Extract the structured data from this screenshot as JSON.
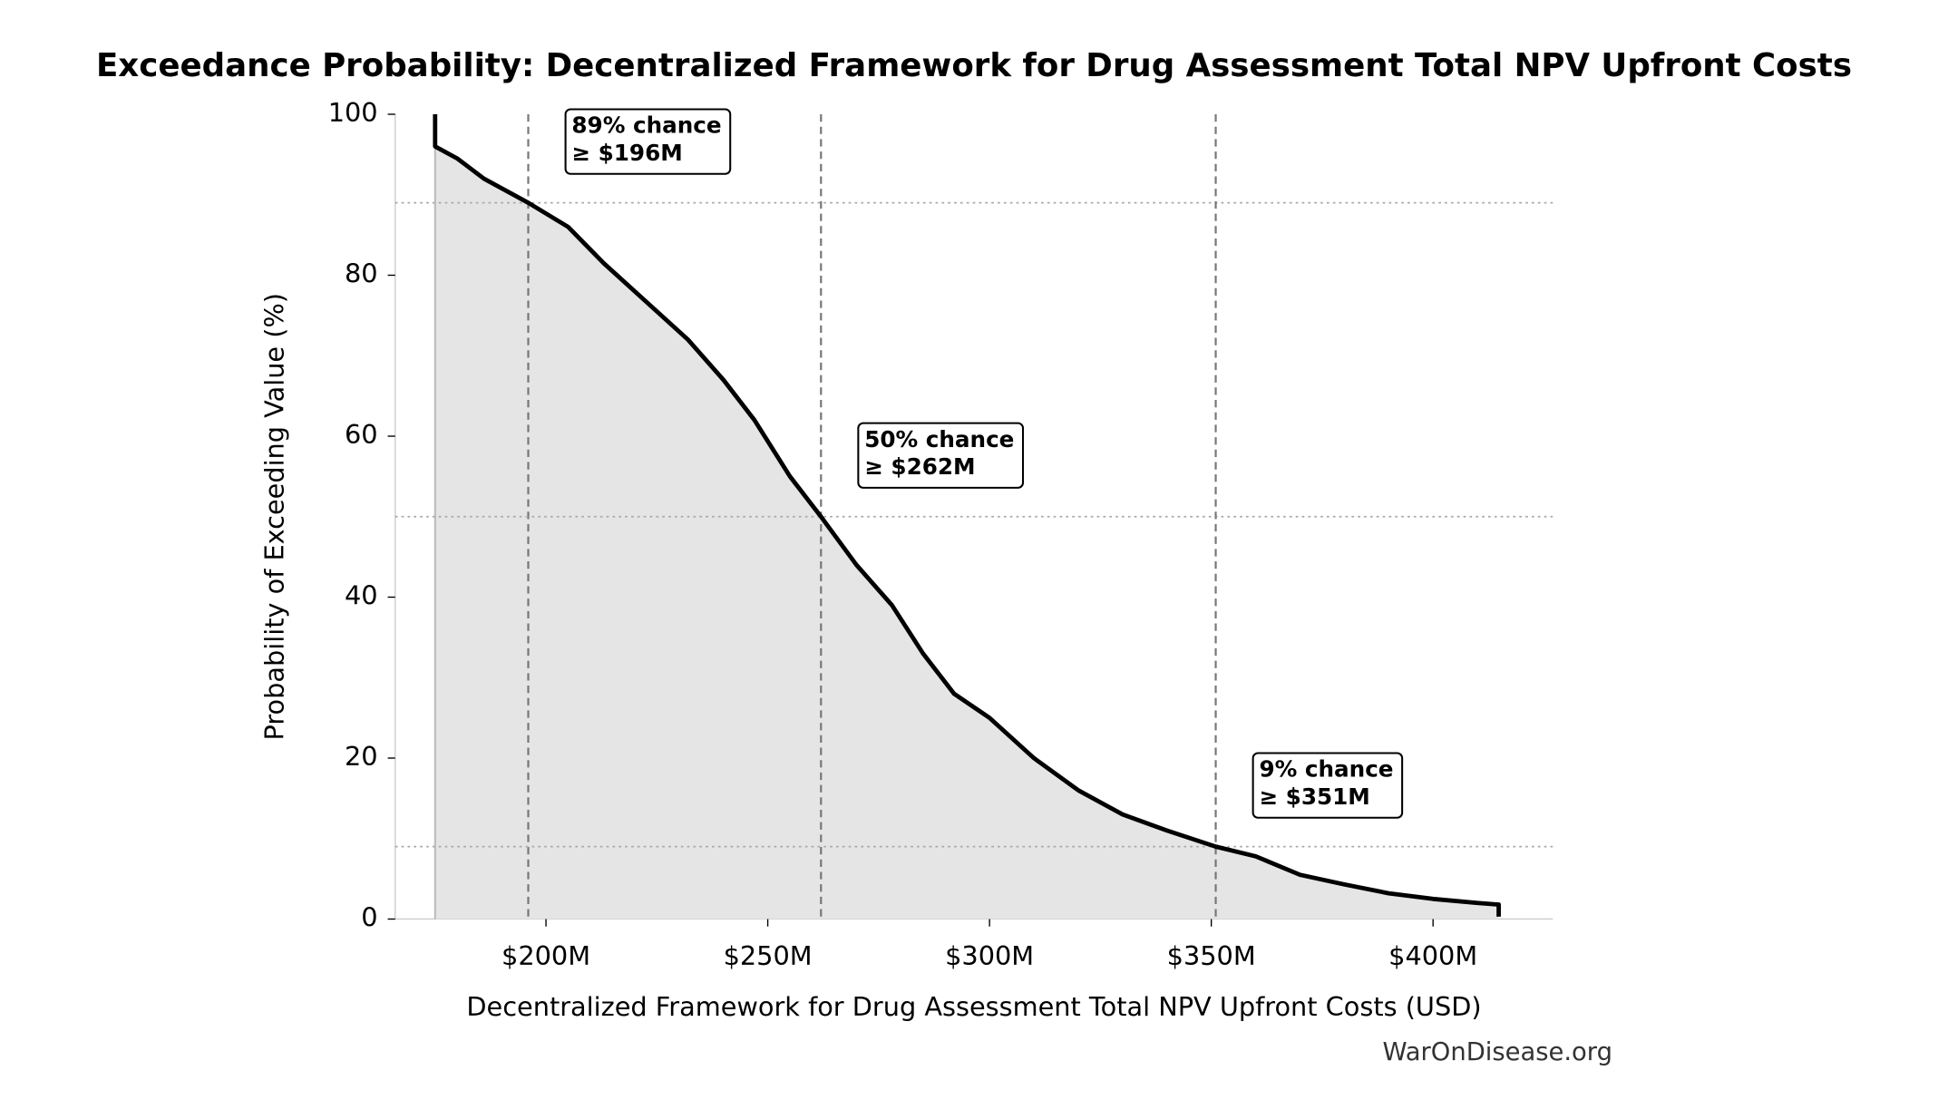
{
  "chart_data": {
    "type": "line",
    "title": "Exceedance Probability: Decentralized Framework for Drug Assessment Total NPV Upfront Costs",
    "xlabel": "Decentralized Framework for Drug Assessment Total NPV Upfront Costs (USD)",
    "ylabel": "Probability of Exceeding Value (%)",
    "watermark": "WarOnDisease.org",
    "x": [
      175,
      175,
      180,
      186,
      196,
      205,
      213,
      222,
      232,
      240,
      247,
      255,
      262,
      270,
      278,
      285,
      292,
      300,
      310,
      320,
      330,
      340,
      351,
      360,
      370,
      380,
      390,
      400,
      410,
      414.8,
      414.8
    ],
    "values": [
      100,
      96,
      94.5,
      92,
      89,
      86,
      81.5,
      77,
      72,
      67,
      62,
      55,
      50,
      44,
      39,
      33,
      28,
      25,
      20,
      16,
      13,
      11,
      9,
      7.8,
      5.5,
      4.3,
      3.2,
      2.5,
      2,
      1.8,
      0.3
    ],
    "color": "#000000",
    "fill_color": "#e5e5e5",
    "xlim": [
      166,
      427
    ],
    "ylim": [
      0,
      100
    ],
    "xticks": [
      {
        "value": 200,
        "label": "$200M"
      },
      {
        "value": 250,
        "label": "$250M"
      },
      {
        "value": 300,
        "label": "$300M"
      },
      {
        "value": 350,
        "label": "$350M"
      },
      {
        "value": 400,
        "label": "$400M"
      }
    ],
    "yticks": [
      0,
      20,
      40,
      60,
      80,
      100
    ],
    "annotations": [
      {
        "x": 196,
        "y": 89,
        "lines": [
          "89% chance",
          "≥ $196M"
        ]
      },
      {
        "x": 262,
        "y": 50,
        "lines": [
          "50% chance",
          "≥ $262M"
        ]
      },
      {
        "x": 351,
        "y": 9,
        "lines": [
          "9% chance",
          "≥ $351M"
        ]
      }
    ]
  }
}
